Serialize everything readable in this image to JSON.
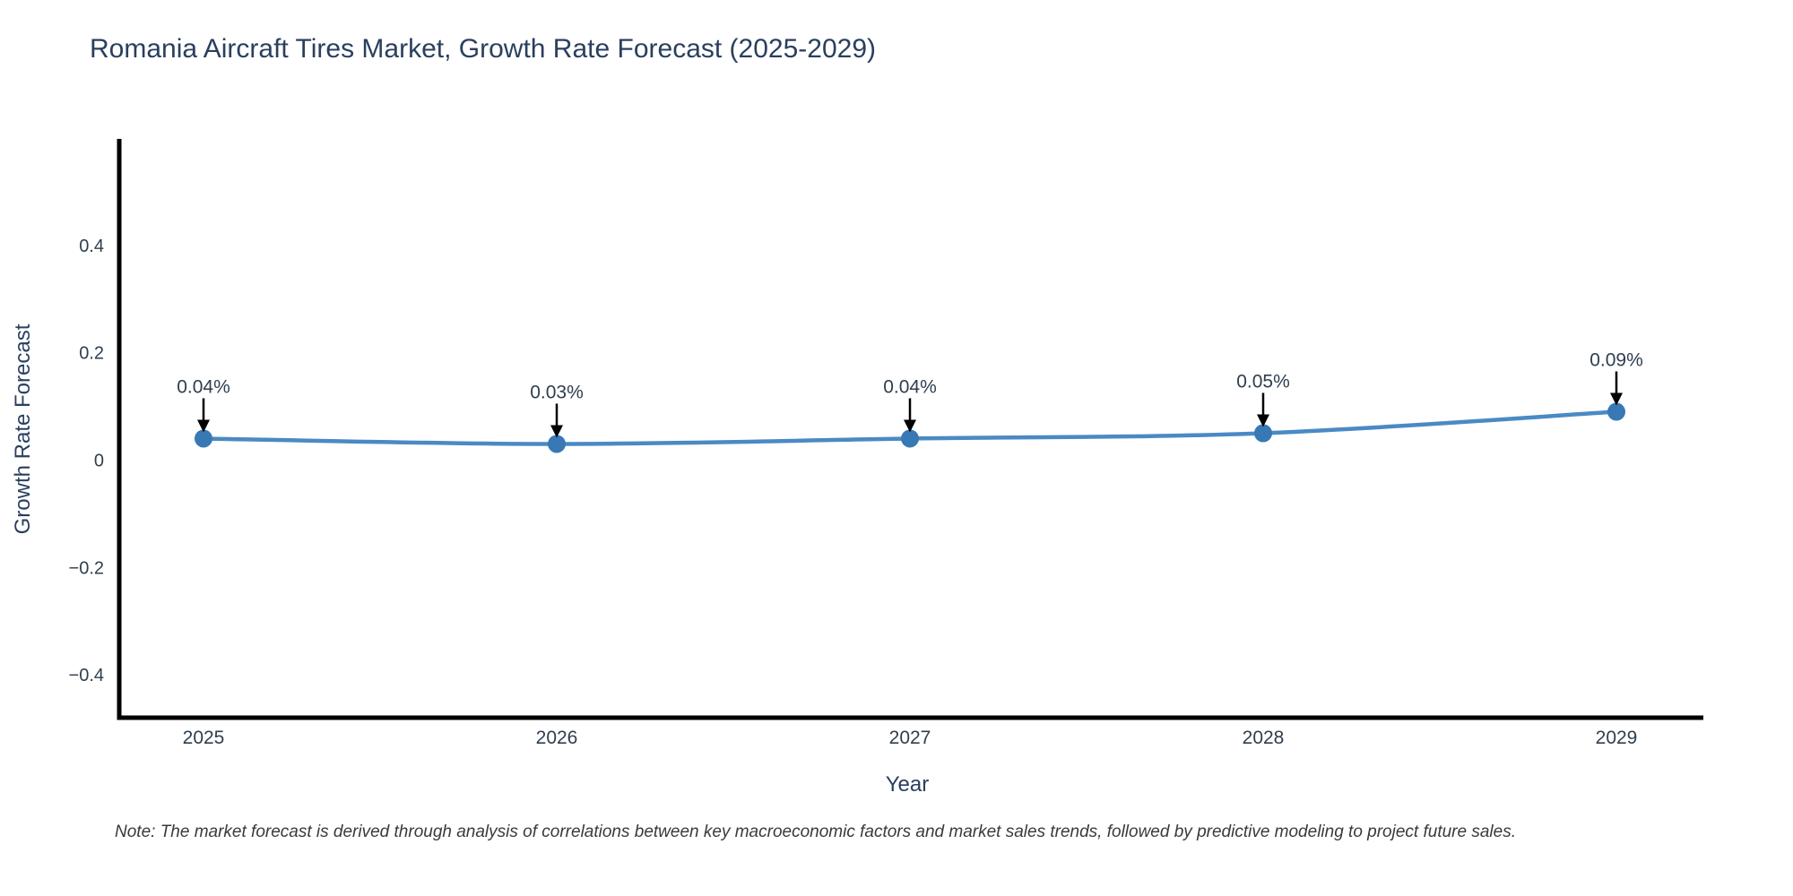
{
  "title": "Romania Aircraft Tires Market, Growth Rate Forecast (2025-2029)",
  "footnote": "Note: The market forecast is derived through analysis of correlations between key macroeconomic factors and market sales trends, followed by predictive modeling to project future sales.",
  "chart_data": {
    "type": "line",
    "title": "Romania Aircraft Tires Market, Growth Rate Forecast (2025-2029)",
    "categories": [
      "2025",
      "2026",
      "2027",
      "2028",
      "2029"
    ],
    "series": [
      {
        "name": "Growth Rate Forecast",
        "values": [
          0.04,
          0.03,
          0.04,
          0.05,
          0.09
        ],
        "point_labels": [
          "0.04%",
          "0.03%",
          "0.04%",
          "0.05%",
          "0.09%"
        ]
      }
    ],
    "xlabel": "Year",
    "ylabel": "Growth Rate Forecast",
    "yticks": [
      0.4,
      0.2,
      0,
      -0.2,
      -0.4
    ],
    "ytick_labels": [
      "0.4",
      "0.2",
      "0",
      "−0.2",
      "−0.4"
    ],
    "ylim": [
      -0.48,
      0.595
    ],
    "grid": false,
    "legend": false,
    "line_shape": "spline",
    "annotation_style": "black-down-arrow-to-each-point",
    "colors": {
      "line": "#4a8ac4",
      "marker": "#3878b4",
      "axis": "#000000",
      "title_text": "#2a3f5f",
      "tick_text": "#2f3e4e",
      "annotation_text": "#2f3e4e",
      "annotation_arrow": "#000000",
      "note_text": "#3a3a3a",
      "background": "#ffffff"
    },
    "marker_size": 10,
    "line_width": 4.5
  }
}
